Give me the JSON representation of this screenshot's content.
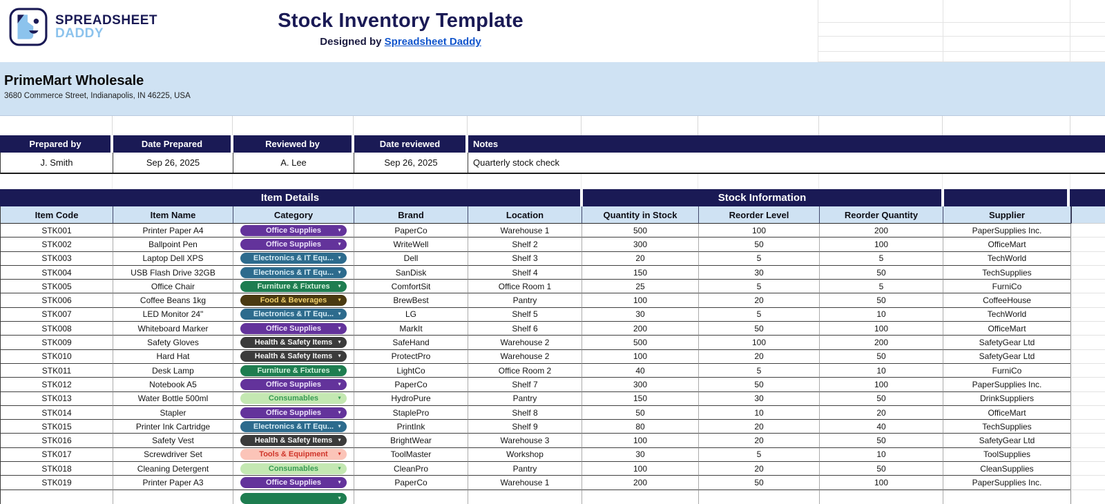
{
  "header": {
    "brand_line1": "SPREADSHEET",
    "brand_line2": "DADDY",
    "title": "Stock Inventory Template",
    "designed_by_prefix": "Designed by ",
    "designed_by_link": "Spreadsheet Daddy"
  },
  "company": {
    "name": "PrimeMart Wholesale",
    "address": "3680 Commerce Street, Indianapolis, IN 46225, USA"
  },
  "meta_table": {
    "headers": [
      "Prepared by",
      "Date Prepared",
      "Reviewed by",
      "Date reviewed",
      "Notes"
    ],
    "values": [
      "J. Smith",
      "Sep 26, 2025",
      "A. Lee",
      "Sep 26, 2025",
      "Quarterly stock check"
    ]
  },
  "inventory": {
    "group_headers": [
      "Item Details",
      "Stock Information"
    ],
    "columns": [
      "Item Code",
      "Item Name",
      "Category",
      "Brand",
      "Location",
      "Quantity in Stock",
      "Reorder Level",
      "Reorder Quantity",
      "Supplier"
    ],
    "category_styles": {
      "office": {
        "label": "Office Supplies",
        "bg": "#63339b",
        "fg": "#ece1fa"
      },
      "electronics": {
        "label": "Electronics & IT Equ...",
        "bg": "#2d6b8d",
        "fg": "#d6ecf5"
      },
      "furniture": {
        "label": "Furniture & Fixtures",
        "bg": "#1e7d50",
        "fg": "#d2f0da"
      },
      "food": {
        "label": "Food & Beverages",
        "bg": "#4a3a12",
        "fg": "#f2d16b"
      },
      "health": {
        "label": "Health & Safety Items",
        "bg": "#3b3b3b",
        "fg": "#f4f4f4"
      },
      "consumables": {
        "label": "Consumables",
        "bg": "#c4e8b2",
        "fg": "#379a53"
      },
      "tools": {
        "label": "Tools & Equipment",
        "bg": "#fbc4b8",
        "fg": "#cf3429"
      }
    },
    "rows": [
      {
        "code": "STK001",
        "name": "Printer Paper A4",
        "category": "office",
        "brand": "PaperCo",
        "location": "Warehouse 1",
        "qty": "500",
        "reorder_level": "100",
        "reorder_qty": "200",
        "supplier": "PaperSupplies Inc."
      },
      {
        "code": "STK002",
        "name": "Ballpoint Pen",
        "category": "office",
        "brand": "WriteWell",
        "location": "Shelf 2",
        "qty": "300",
        "reorder_level": "50",
        "reorder_qty": "100",
        "supplier": "OfficeMart"
      },
      {
        "code": "STK003",
        "name": "Laptop Dell XPS",
        "category": "electronics",
        "brand": "Dell",
        "location": "Shelf 3",
        "qty": "20",
        "reorder_level": "5",
        "reorder_qty": "5",
        "supplier": "TechWorld"
      },
      {
        "code": "STK004",
        "name": "USB Flash Drive 32GB",
        "category": "electronics",
        "brand": "SanDisk",
        "location": "Shelf 4",
        "qty": "150",
        "reorder_level": "30",
        "reorder_qty": "50",
        "supplier": "TechSupplies"
      },
      {
        "code": "STK005",
        "name": "Office Chair",
        "category": "furniture",
        "brand": "ComfortSit",
        "location": "Office Room 1",
        "qty": "25",
        "reorder_level": "5",
        "reorder_qty": "5",
        "supplier": "FurniCo"
      },
      {
        "code": "STK006",
        "name": "Coffee Beans 1kg",
        "category": "food",
        "brand": "BrewBest",
        "location": "Pantry",
        "qty": "100",
        "reorder_level": "20",
        "reorder_qty": "50",
        "supplier": "CoffeeHouse"
      },
      {
        "code": "STK007",
        "name": "LED Monitor 24\"",
        "category": "electronics",
        "brand": "LG",
        "location": "Shelf 5",
        "qty": "30",
        "reorder_level": "5",
        "reorder_qty": "10",
        "supplier": "TechWorld"
      },
      {
        "code": "STK008",
        "name": "Whiteboard Marker",
        "category": "office",
        "brand": "MarkIt",
        "location": "Shelf 6",
        "qty": "200",
        "reorder_level": "50",
        "reorder_qty": "100",
        "supplier": "OfficeMart"
      },
      {
        "code": "STK009",
        "name": "Safety Gloves",
        "category": "health",
        "brand": "SafeHand",
        "location": "Warehouse 2",
        "qty": "500",
        "reorder_level": "100",
        "reorder_qty": "200",
        "supplier": "SafetyGear Ltd"
      },
      {
        "code": "STK010",
        "name": "Hard Hat",
        "category": "health",
        "brand": "ProtectPro",
        "location": "Warehouse 2",
        "qty": "100",
        "reorder_level": "20",
        "reorder_qty": "50",
        "supplier": "SafetyGear Ltd"
      },
      {
        "code": "STK011",
        "name": "Desk Lamp",
        "category": "furniture",
        "brand": "LightCo",
        "location": "Office Room 2",
        "qty": "40",
        "reorder_level": "5",
        "reorder_qty": "10",
        "supplier": "FurniCo"
      },
      {
        "code": "STK012",
        "name": "Notebook A5",
        "category": "office",
        "brand": "PaperCo",
        "location": "Shelf 7",
        "qty": "300",
        "reorder_level": "50",
        "reorder_qty": "100",
        "supplier": "PaperSupplies Inc."
      },
      {
        "code": "STK013",
        "name": "Water Bottle 500ml",
        "category": "consumables",
        "brand": "HydroPure",
        "location": "Pantry",
        "qty": "150",
        "reorder_level": "30",
        "reorder_qty": "50",
        "supplier": "DrinkSuppliers"
      },
      {
        "code": "STK014",
        "name": "Stapler",
        "category": "office",
        "brand": "StaplePro",
        "location": "Shelf 8",
        "qty": "50",
        "reorder_level": "10",
        "reorder_qty": "20",
        "supplier": "OfficeMart"
      },
      {
        "code": "STK015",
        "name": "Printer Ink Cartridge",
        "category": "electronics",
        "brand": "PrintInk",
        "location": "Shelf 9",
        "qty": "80",
        "reorder_level": "20",
        "reorder_qty": "40",
        "supplier": "TechSupplies"
      },
      {
        "code": "STK016",
        "name": "Safety Vest",
        "category": "health",
        "brand": "BrightWear",
        "location": "Warehouse 3",
        "qty": "100",
        "reorder_level": "20",
        "reorder_qty": "50",
        "supplier": "SafetyGear Ltd"
      },
      {
        "code": "STK017",
        "name": "Screwdriver Set",
        "category": "tools",
        "brand": "ToolMaster",
        "location": "Workshop",
        "qty": "30",
        "reorder_level": "5",
        "reorder_qty": "10",
        "supplier": "ToolSupplies"
      },
      {
        "code": "STK018",
        "name": "Cleaning Detergent",
        "category": "consumables",
        "brand": "CleanPro",
        "location": "Pantry",
        "qty": "100",
        "reorder_level": "20",
        "reorder_qty": "50",
        "supplier": "CleanSupplies"
      },
      {
        "code": "STK019",
        "name": "Printer Paper A3",
        "category": "office",
        "brand": "PaperCo",
        "location": "Warehouse 1",
        "qty": "200",
        "reorder_level": "50",
        "reorder_qty": "100",
        "supplier": "PaperSupplies Inc."
      }
    ],
    "partial_row": {
      "category": "furniture"
    }
  },
  "colors": {
    "navy": "#1a1a55",
    "light_blue": "#cfe2f3",
    "link_blue": "#1155cc",
    "logo_blue": "#8cc3ed"
  }
}
